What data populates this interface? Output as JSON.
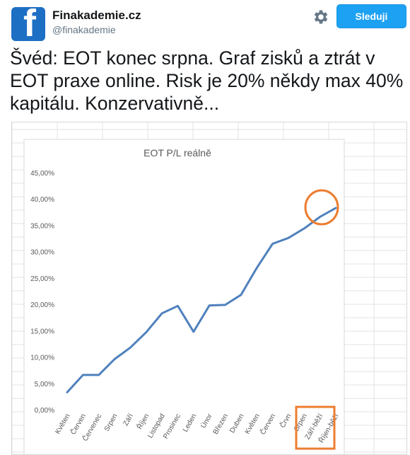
{
  "account": {
    "display_name": "Finakademie.cz",
    "handle": "@finakademie",
    "avatar_letter": "f",
    "avatar_color": "#1d6fc4"
  },
  "actions": {
    "follow_label": "Sleduji",
    "settings_icon": "gear-icon"
  },
  "tweet": {
    "text": "Švéd: EOT konec srpna. Graf zisků a ztrát v EOT praxe online. Risk je 20% někdy max 40% kapitálu. Konzervativně..."
  },
  "colors": {
    "accent": "#1da1f2",
    "line": "#4f81bd",
    "highlight": "#ed7d31"
  },
  "chart_data": {
    "type": "line",
    "title": "EOT P/L reálně",
    "categories": [
      "Květen",
      "Červen",
      "Červenec",
      "Srpen",
      "Září",
      "Říjen",
      "Listopad",
      "Prosinec",
      "Leden",
      "Únor",
      "Březen",
      "Duben",
      "Květen",
      "Červen",
      "Črvn",
      "Srpen",
      "Září-běží",
      "Říjen-běží"
    ],
    "series": [
      {
        "values": [
          3.3,
          6.6,
          6.6,
          9.6,
          11.8,
          14.7,
          18.3,
          19.7,
          14.8,
          19.8,
          19.9,
          21.8,
          26.9,
          31.5,
          32.6,
          34.4,
          36.6,
          38.3
        ]
      }
    ],
    "ylim": [
      0,
      45
    ],
    "yticks": [
      "0,00%",
      "5,00%",
      "10,00%",
      "15,00%",
      "20,00%",
      "25,00%",
      "30,00%",
      "35,00%",
      "40,00%",
      "45,00%"
    ],
    "grid": false
  }
}
